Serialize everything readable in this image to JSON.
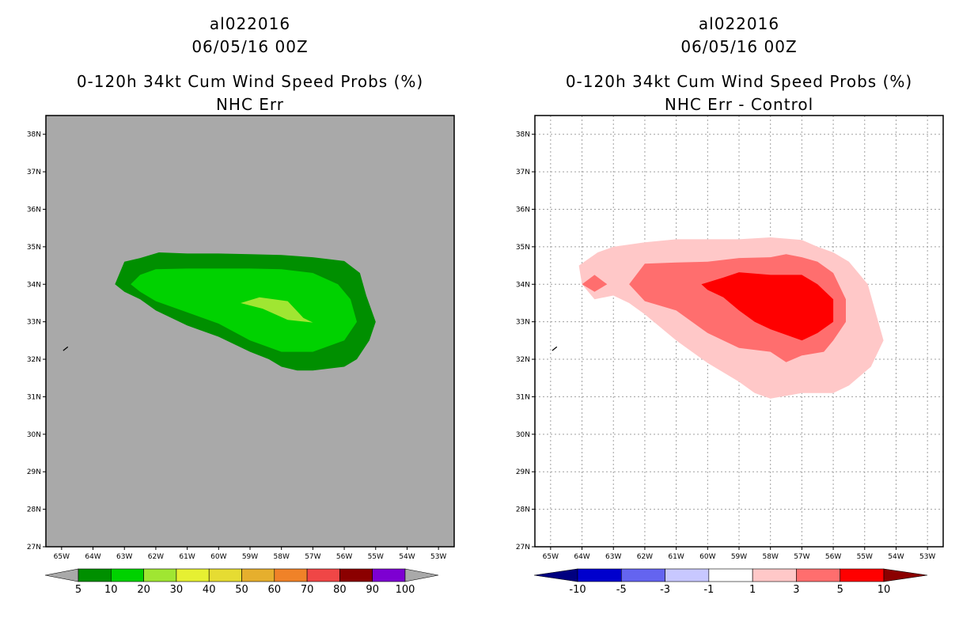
{
  "chart_data": [
    {
      "type": "heatmap",
      "storm_id": "al022016",
      "date_time": "06/05/16 00Z",
      "title": "0-120h 34kt Cum Wind Speed Probs (%)",
      "subtitle": "NHC Err",
      "x_tick_labels": [
        "65W",
        "64W",
        "63W",
        "62W",
        "61W",
        "60W",
        "59W",
        "58W",
        "57W",
        "56W",
        "55W",
        "54W",
        "53W"
      ],
      "y_tick_labels": [
        "27N",
        "28N",
        "29N",
        "30N",
        "31N",
        "32N",
        "33N",
        "34N",
        "35N",
        "36N",
        "37N",
        "38N"
      ],
      "xlim": [
        -65.5,
        -52.5
      ],
      "ylim": [
        27,
        38.5
      ],
      "grid": false,
      "background_color": "#a9a9a9",
      "colorbar": {
        "labels": [
          "5",
          "10",
          "20",
          "30",
          "40",
          "50",
          "60",
          "70",
          "80",
          "90",
          "100"
        ],
        "colors": [
          "#008f00",
          "#00d200",
          "#a0e632",
          "#e6f032",
          "#e6dc32",
          "#e6af2d",
          "#f08228",
          "#f04646",
          "#8b0000",
          "#7d00d2"
        ],
        "left_arrow_color": "#a9a9a9",
        "right_arrow_color": "#a9a9a9"
      },
      "contours": [
        {
          "level": "5-10",
          "color": "#008f00",
          "points": [
            [
              -63.3,
              34.0
            ],
            [
              -63.0,
              34.6
            ],
            [
              -62.5,
              34.7
            ],
            [
              -61.9,
              34.85
            ],
            [
              -61.0,
              34.82
            ],
            [
              -60.0,
              34.82
            ],
            [
              -59.0,
              34.8
            ],
            [
              -58.0,
              34.78
            ],
            [
              -57.0,
              34.72
            ],
            [
              -56.0,
              34.62
            ],
            [
              -55.5,
              34.3
            ],
            [
              -55.3,
              33.7
            ],
            [
              -55.0,
              33.0
            ],
            [
              -55.2,
              32.5
            ],
            [
              -55.6,
              32.0
            ],
            [
              -56.0,
              31.8
            ],
            [
              -57.0,
              31.7
            ],
            [
              -57.5,
              31.7
            ],
            [
              -58.0,
              31.8
            ],
            [
              -58.4,
              32.0
            ],
            [
              -59.0,
              32.2
            ],
            [
              -60.0,
              32.6
            ],
            [
              -61.0,
              32.9
            ],
            [
              -62.0,
              33.3
            ],
            [
              -62.5,
              33.6
            ],
            [
              -63.0,
              33.8
            ]
          ]
        },
        {
          "level": "10-20",
          "color": "#00d200",
          "points": [
            [
              -62.8,
              34.0
            ],
            [
              -62.5,
              34.25
            ],
            [
              -62.0,
              34.4
            ],
            [
              -61.0,
              34.42
            ],
            [
              -60.0,
              34.42
            ],
            [
              -59.0,
              34.42
            ],
            [
              -58.0,
              34.4
            ],
            [
              -57.0,
              34.3
            ],
            [
              -56.2,
              34.0
            ],
            [
              -55.8,
              33.6
            ],
            [
              -55.6,
              33.0
            ],
            [
              -56.0,
              32.5
            ],
            [
              -57.0,
              32.2
            ],
            [
              -58.0,
              32.2
            ],
            [
              -59.0,
              32.5
            ],
            [
              -60.0,
              32.95
            ],
            [
              -61.0,
              33.25
            ],
            [
              -62.0,
              33.55
            ],
            [
              -62.5,
              33.8
            ]
          ]
        },
        {
          "level": "20-30",
          "color": "#a0e632",
          "points": [
            [
              -59.3,
              33.5
            ],
            [
              -58.7,
              33.65
            ],
            [
              -57.8,
              33.55
            ],
            [
              -57.3,
              33.1
            ],
            [
              -57.0,
              32.98
            ],
            [
              -57.8,
              33.05
            ],
            [
              -58.6,
              33.35
            ]
          ]
        }
      ]
    },
    {
      "type": "heatmap",
      "storm_id": "al022016",
      "date_time": "06/05/16 00Z",
      "title": "0-120h 34kt Cum Wind Speed Probs (%)",
      "subtitle": "NHC Err - Control",
      "x_tick_labels": [
        "65W",
        "64W",
        "63W",
        "62W",
        "61W",
        "60W",
        "59W",
        "58W",
        "57W",
        "56W",
        "55W",
        "54W",
        "53W"
      ],
      "y_tick_labels": [
        "27N",
        "28N",
        "29N",
        "30N",
        "31N",
        "32N",
        "33N",
        "34N",
        "35N",
        "36N",
        "37N",
        "38N"
      ],
      "xlim": [
        -65.5,
        -52.5
      ],
      "ylim": [
        27,
        38.5
      ],
      "grid": true,
      "background_color": "#ffffff",
      "colorbar": {
        "labels": [
          "-10",
          "-5",
          "-3",
          "-1",
          "1",
          "3",
          "5",
          "10"
        ],
        "colors": [
          "#0000cd",
          "#6464f0",
          "#c8c8ff",
          "#ffffff",
          "#ffc8c8",
          "#ff6e6e",
          "#ff0000"
        ],
        "left_arrow_color": "#000080",
        "right_arrow_color": "#8b0000"
      },
      "contours": [
        {
          "level": "1-3",
          "color": "#ffc8c8",
          "points": [
            [
              -64.1,
              34.5
            ],
            [
              -63.5,
              34.85
            ],
            [
              -63.0,
              35.0
            ],
            [
              -62.0,
              35.12
            ],
            [
              -61.0,
              35.2
            ],
            [
              -60.0,
              35.2
            ],
            [
              -59.0,
              35.2
            ],
            [
              -58.0,
              35.25
            ],
            [
              -57.0,
              35.18
            ],
            [
              -56.5,
              35.0
            ],
            [
              -56.0,
              34.85
            ],
            [
              -55.5,
              34.6
            ],
            [
              -54.9,
              34.0
            ],
            [
              -54.6,
              33.1
            ],
            [
              -54.4,
              32.5
            ],
            [
              -54.8,
              31.8
            ],
            [
              -55.5,
              31.3
            ],
            [
              -56.0,
              31.1
            ],
            [
              -57.0,
              31.1
            ],
            [
              -58.0,
              30.95
            ],
            [
              -58.5,
              31.1
            ],
            [
              -59.0,
              31.4
            ],
            [
              -60.0,
              31.9
            ],
            [
              -61.0,
              32.5
            ],
            [
              -62.0,
              33.2
            ],
            [
              -62.5,
              33.5
            ],
            [
              -63.0,
              33.7
            ],
            [
              -63.6,
              33.6
            ],
            [
              -64.0,
              34.0
            ]
          ]
        },
        {
          "level": "3-5",
          "color": "#ff6e6e",
          "points": [
            [
              -62.5,
              34.0
            ],
            [
              -62.0,
              34.55
            ],
            [
              -61.0,
              34.58
            ],
            [
              -60.0,
              34.6
            ],
            [
              -59.0,
              34.7
            ],
            [
              -58.0,
              34.72
            ],
            [
              -57.5,
              34.8
            ],
            [
              -57.0,
              34.72
            ],
            [
              -56.5,
              34.6
            ],
            [
              -56.0,
              34.3
            ],
            [
              -55.6,
              33.6
            ],
            [
              -55.6,
              33.0
            ],
            [
              -56.0,
              32.5
            ],
            [
              -56.3,
              32.2
            ],
            [
              -57.0,
              32.1
            ],
            [
              -57.5,
              31.92
            ],
            [
              -58.0,
              32.2
            ],
            [
              -59.0,
              32.3
            ],
            [
              -60.0,
              32.7
            ],
            [
              -61.0,
              33.3
            ],
            [
              -62.0,
              33.55
            ]
          ]
        },
        {
          "level": "3-5",
          "color": "#ff6e6e",
          "points": [
            [
              -64.0,
              34.0
            ],
            [
              -63.6,
              34.25
            ],
            [
              -63.2,
              34.0
            ],
            [
              -63.6,
              33.8
            ]
          ]
        },
        {
          "level": "5-10",
          "color": "#ff0000",
          "points": [
            [
              -60.2,
              34.0
            ],
            [
              -59.5,
              34.18
            ],
            [
              -59.0,
              34.32
            ],
            [
              -58.0,
              34.25
            ],
            [
              -57.0,
              34.25
            ],
            [
              -56.5,
              34.0
            ],
            [
              -56.0,
              33.6
            ],
            [
              -56.0,
              33.0
            ],
            [
              -56.5,
              32.7
            ],
            [
              -57.0,
              32.5
            ],
            [
              -58.0,
              32.8
            ],
            [
              -58.5,
              33.0
            ],
            [
              -59.0,
              33.3
            ],
            [
              -59.5,
              33.65
            ],
            [
              -60.0,
              33.85
            ]
          ]
        }
      ]
    }
  ]
}
